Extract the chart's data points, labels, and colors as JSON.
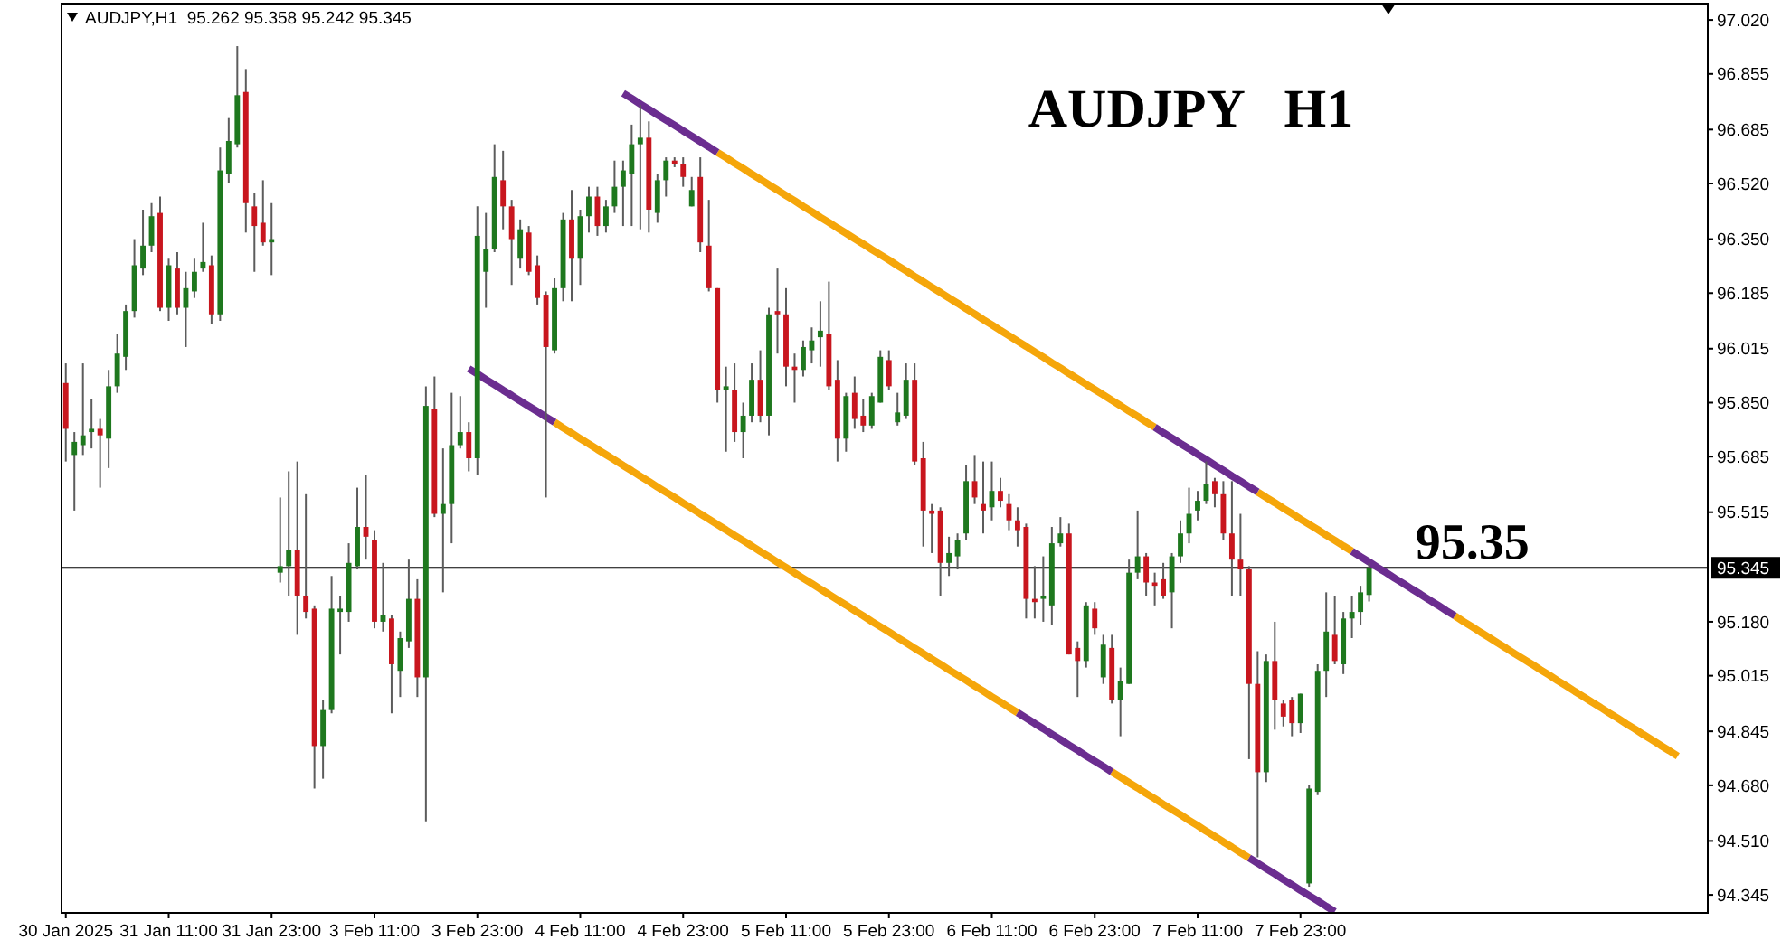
{
  "chart_data": {
    "type": "candlestick",
    "title": "AUDJPY   H1",
    "annotations": [
      "AUDJPY,H1  95.262 95.358 95.242 95.345",
      {
        "text": "95.35",
        "y": 95.35
      }
    ],
    "categories": [
      "30 Jan 2025",
      null,
      null,
      null,
      null,
      null,
      null,
      null,
      null,
      null,
      null,
      null,
      "31 Jan 11:00",
      null,
      null,
      null,
      null,
      null,
      null,
      null,
      null,
      null,
      null,
      null,
      "31 Jan 23:00",
      null,
      null,
      null,
      null,
      null,
      null,
      null,
      null,
      null,
      null,
      null,
      "3 Feb 11:00",
      null,
      null,
      null,
      null,
      null,
      null,
      null,
      null,
      null,
      null,
      null,
      "3 Feb 23:00",
      null,
      null,
      null,
      null,
      null,
      null,
      null,
      null,
      null,
      null,
      null,
      "4 Feb 11:00",
      null,
      null,
      null,
      null,
      null,
      null,
      null,
      null,
      null,
      null,
      null,
      "4 Feb 23:00",
      null,
      null,
      null,
      null,
      null,
      null,
      null,
      null,
      null,
      null,
      null,
      "5 Feb 11:00",
      null,
      null,
      null,
      null,
      null,
      null,
      null,
      null,
      null,
      null,
      null,
      "5 Feb 23:00",
      null,
      null,
      null,
      null,
      null,
      null,
      null,
      null,
      null,
      null,
      null,
      "6 Feb 11:00",
      null,
      null,
      null,
      null,
      null,
      null,
      null,
      null,
      null,
      null,
      null,
      "6 Feb 23:00",
      null,
      null,
      null,
      null,
      null,
      null,
      null,
      null,
      null,
      null,
      null,
      "7 Feb 11:00",
      null,
      null,
      null,
      null,
      null,
      null,
      null,
      null,
      null,
      null,
      null,
      "7 Feb 23:00",
      null,
      null,
      null,
      null,
      null,
      null,
      null,
      null,
      null,
      null,
      null,
      null,
      null,
      null,
      null,
      null,
      null,
      null,
      null,
      null,
      null,
      null,
      null,
      null,
      null,
      null,
      null,
      null,
      null,
      null,
      null,
      null,
      null,
      null,
      null,
      null,
      null,
      null,
      null,
      null,
      null,
      null,
      null,
      null,
      null,
      null,
      null
    ],
    "ohlc": [
      [
        95.91,
        95.97,
        95.67,
        95.77
      ],
      [
        95.69,
        95.76,
        95.52,
        95.73
      ],
      [
        95.72,
        95.97,
        95.69,
        95.75
      ],
      [
        95.76,
        95.86,
        95.71,
        95.77
      ],
      [
        95.77,
        95.8,
        95.59,
        95.75
      ],
      [
        95.74,
        95.95,
        95.65,
        95.9
      ],
      [
        95.9,
        96.06,
        95.88,
        96.0
      ],
      [
        95.99,
        96.15,
        95.95,
        96.13
      ],
      [
        96.13,
        96.35,
        96.11,
        96.27
      ],
      [
        96.26,
        96.44,
        96.24,
        96.33
      ],
      [
        96.33,
        96.46,
        96.31,
        96.42
      ],
      [
        96.43,
        96.48,
        96.13,
        96.14
      ],
      [
        96.14,
        96.29,
        96.1,
        96.27
      ],
      [
        96.26,
        96.31,
        96.12,
        96.14
      ],
      [
        96.14,
        96.25,
        96.02,
        96.2
      ],
      [
        96.19,
        96.29,
        96.17,
        96.25
      ],
      [
        96.26,
        96.4,
        96.25,
        96.28
      ],
      [
        96.27,
        96.3,
        96.09,
        96.12
      ],
      [
        96.12,
        96.63,
        96.1,
        96.56
      ],
      [
        96.55,
        96.72,
        96.52,
        96.65
      ],
      [
        96.64,
        96.94,
        96.63,
        96.79
      ],
      [
        96.8,
        96.87,
        96.37,
        96.46
      ],
      [
        96.45,
        96.49,
        96.25,
        96.39
      ],
      [
        96.4,
        96.53,
        96.33,
        96.34
      ],
      [
        96.34,
        96.46,
        96.24,
        96.35
      ],
      [
        95.33,
        95.56,
        95.3,
        95.35
      ],
      [
        95.35,
        95.64,
        95.26,
        95.4
      ],
      [
        95.4,
        95.67,
        95.14,
        95.26
      ],
      [
        95.26,
        95.57,
        95.19,
        95.21
      ],
      [
        95.22,
        95.23,
        94.67,
        94.8
      ],
      [
        94.8,
        94.94,
        94.7,
        94.91
      ],
      [
        94.91,
        95.32,
        94.9,
        95.22
      ],
      [
        95.21,
        95.26,
        95.08,
        95.22
      ],
      [
        95.21,
        95.42,
        95.18,
        95.36
      ],
      [
        95.35,
        95.59,
        95.34,
        95.47
      ],
      [
        95.47,
        95.63,
        95.37,
        95.44
      ],
      [
        95.43,
        95.46,
        95.16,
        95.18
      ],
      [
        95.18,
        95.36,
        95.15,
        95.2
      ],
      [
        95.19,
        95.2,
        94.9,
        95.05
      ],
      [
        95.03,
        95.15,
        94.95,
        95.13
      ],
      [
        95.12,
        95.37,
        95.1,
        95.25
      ],
      [
        95.25,
        95.31,
        94.95,
        95.01
      ],
      [
        95.01,
        95.9,
        94.57,
        95.84
      ],
      [
        95.83,
        95.93,
        95.5,
        95.51
      ],
      [
        95.51,
        95.71,
        95.27,
        95.54
      ],
      [
        95.54,
        95.88,
        95.42,
        95.72
      ],
      [
        95.72,
        95.87,
        95.71,
        95.76
      ],
      [
        95.76,
        95.79,
        95.64,
        95.68
      ],
      [
        95.68,
        96.45,
        95.63,
        96.36
      ],
      [
        96.25,
        96.43,
        96.14,
        96.32
      ],
      [
        96.32,
        96.64,
        96.31,
        96.54
      ],
      [
        96.53,
        96.62,
        96.38,
        96.45
      ],
      [
        96.45,
        96.47,
        96.21,
        96.35
      ],
      [
        96.29,
        96.41,
        96.26,
        96.38
      ],
      [
        96.37,
        96.39,
        96.24,
        96.25
      ],
      [
        96.27,
        96.3,
        96.15,
        96.17
      ],
      [
        96.18,
        96.19,
        95.56,
        96.02
      ],
      [
        96.01,
        96.23,
        96.0,
        96.2
      ],
      [
        96.2,
        96.43,
        96.16,
        96.41
      ],
      [
        96.41,
        96.5,
        96.16,
        96.29
      ],
      [
        96.29,
        96.44,
        96.21,
        96.42
      ],
      [
        96.42,
        96.51,
        96.37,
        96.48
      ],
      [
        96.48,
        96.51,
        96.36,
        96.39
      ],
      [
        96.39,
        96.47,
        96.37,
        96.45
      ],
      [
        96.45,
        96.59,
        96.43,
        96.51
      ],
      [
        96.51,
        96.59,
        96.39,
        96.56
      ],
      [
        96.55,
        96.7,
        96.39,
        96.64
      ],
      [
        96.64,
        96.76,
        96.38,
        96.66
      ],
      [
        96.66,
        96.71,
        96.37,
        96.44
      ],
      [
        96.43,
        96.55,
        96.4,
        96.53
      ],
      [
        96.53,
        96.6,
        96.48,
        96.59
      ],
      [
        96.59,
        96.6,
        96.57,
        96.58
      ],
      [
        96.58,
        96.6,
        96.51,
        96.54
      ],
      [
        96.45,
        96.54,
        96.45,
        96.5
      ],
      [
        96.54,
        96.6,
        96.31,
        96.34
      ],
      [
        96.33,
        96.47,
        96.19,
        96.2
      ],
      [
        96.2,
        96.2,
        95.85,
        95.89
      ],
      [
        95.89,
        95.96,
        95.7,
        95.9
      ],
      [
        95.89,
        95.97,
        95.73,
        95.76
      ],
      [
        95.76,
        95.85,
        95.68,
        95.81
      ],
      [
        95.81,
        95.97,
        95.79,
        95.92
      ],
      [
        95.92,
        96.01,
        95.79,
        95.81
      ],
      [
        95.81,
        96.14,
        95.75,
        96.12
      ],
      [
        96.13,
        96.26,
        96.0,
        96.12
      ],
      [
        96.12,
        96.2,
        95.9,
        95.96
      ],
      [
        95.96,
        96.0,
        95.85,
        95.95
      ],
      [
        95.95,
        96.04,
        95.93,
        96.02
      ],
      [
        96.01,
        96.08,
        95.97,
        96.04
      ],
      [
        96.05,
        96.16,
        95.96,
        96.07
      ],
      [
        96.06,
        96.22,
        95.89,
        95.9
      ],
      [
        95.92,
        95.98,
        95.67,
        95.74
      ],
      [
        95.74,
        95.88,
        95.7,
        95.87
      ],
      [
        95.88,
        95.93,
        95.77,
        95.8
      ],
      [
        95.81,
        95.86,
        95.76,
        95.78
      ],
      [
        95.78,
        95.88,
        95.77,
        95.87
      ],
      [
        95.85,
        96.01,
        95.85,
        95.99
      ],
      [
        95.98,
        96.01,
        95.89,
        95.9
      ],
      [
        95.79,
        95.88,
        95.78,
        95.82
      ],
      [
        95.81,
        95.97,
        95.8,
        95.92
      ],
      [
        95.92,
        95.97,
        95.66,
        95.67
      ],
      [
        95.68,
        95.73,
        95.41,
        95.52
      ],
      [
        95.52,
        95.54,
        95.39,
        95.51
      ],
      [
        95.52,
        95.53,
        95.26,
        95.36
      ],
      [
        95.36,
        95.44,
        95.32,
        95.39
      ],
      [
        95.38,
        95.45,
        95.34,
        95.43
      ],
      [
        95.45,
        95.66,
        95.43,
        95.61
      ],
      [
        95.61,
        95.69,
        95.54,
        95.56
      ],
      [
        95.54,
        95.67,
        95.45,
        95.52
      ],
      [
        95.53,
        95.67,
        95.49,
        95.58
      ],
      [
        95.58,
        95.62,
        95.53,
        95.55
      ],
      [
        95.54,
        95.57,
        95.46,
        95.49
      ],
      [
        95.49,
        95.53,
        95.41,
        95.46
      ],
      [
        95.47,
        95.48,
        95.19,
        95.25
      ],
      [
        95.25,
        95.35,
        95.19,
        95.24
      ],
      [
        95.25,
        95.38,
        95.18,
        95.26
      ],
      [
        95.23,
        95.47,
        95.17,
        95.42
      ],
      [
        95.42,
        95.5,
        95.41,
        95.45
      ],
      [
        95.45,
        95.48,
        95.08,
        95.08
      ],
      [
        95.1,
        95.12,
        94.95,
        95.06
      ],
      [
        95.06,
        95.24,
        95.04,
        95.23
      ],
      [
        95.22,
        95.24,
        95.14,
        95.16
      ],
      [
        95.01,
        95.14,
        94.99,
        95.11
      ],
      [
        95.1,
        95.14,
        94.93,
        94.94
      ],
      [
        94.94,
        95.04,
        94.83,
        95.0
      ],
      [
        94.99,
        95.37,
        94.99,
        95.33
      ],
      [
        95.33,
        95.52,
        95.31,
        95.38
      ],
      [
        95.38,
        95.39,
        95.26,
        95.3
      ],
      [
        95.3,
        95.33,
        95.23,
        95.29
      ],
      [
        95.31,
        95.36,
        95.25,
        95.26
      ],
      [
        95.27,
        95.39,
        95.16,
        95.38
      ],
      [
        95.38,
        95.49,
        95.36,
        95.45
      ],
      [
        95.45,
        95.59,
        95.42,
        95.51
      ],
      [
        95.52,
        95.58,
        95.49,
        95.55
      ],
      [
        95.55,
        95.67,
        95.54,
        95.6
      ],
      [
        95.61,
        95.62,
        95.53,
        95.57
      ],
      [
        95.57,
        95.61,
        95.43,
        95.45
      ],
      [
        95.45,
        95.61,
        95.26,
        95.37
      ],
      [
        95.37,
        95.51,
        95.26,
        95.34
      ],
      [
        95.34,
        95.35,
        94.76,
        94.99
      ],
      [
        94.99,
        95.09,
        94.46,
        94.72
      ],
      [
        94.72,
        95.08,
        94.69,
        95.06
      ],
      [
        95.06,
        95.18,
        94.85,
        94.94
      ],
      [
        94.93,
        94.94,
        94.86,
        94.89
      ],
      [
        94.94,
        94.95,
        94.83,
        94.87
      ],
      [
        94.87,
        94.96,
        94.84,
        94.96
      ],
      [
        94.38,
        94.68,
        94.37,
        94.67
      ],
      [
        94.66,
        95.05,
        94.65,
        95.03
      ],
      [
        95.03,
        95.27,
        94.95,
        95.15
      ],
      [
        95.14,
        95.26,
        95.05,
        95.06
      ],
      [
        95.05,
        95.21,
        95.02,
        95.19
      ],
      [
        95.19,
        95.26,
        95.13,
        95.21
      ],
      [
        95.21,
        95.29,
        95.17,
        95.27
      ],
      [
        95.262,
        95.358,
        95.242,
        95.345
      ],
      null,
      null,
      null,
      null,
      null,
      null,
      null,
      null,
      null,
      null,
      null,
      null,
      null,
      null,
      null,
      null,
      null,
      null,
      null,
      null,
      null,
      null,
      null,
      null,
      null,
      null,
      null,
      null,
      null,
      null,
      null,
      null,
      null,
      null,
      null,
      null,
      null,
      null,
      null
    ],
    "colors": [
      "#c8161e",
      "#1e781e",
      "#1e781e",
      "#1e781e",
      "#c8161e",
      "#1e781e",
      "#1e781e",
      "#1e781e",
      "#1e781e",
      "#1e781e",
      "#1e781e",
      "#c8161e",
      "#1e781e",
      "#c8161e",
      "#1e781e",
      "#1e781e",
      "#1e781e",
      "#c8161e",
      "#1e781e",
      "#1e781e",
      "#1e781e",
      "#c8161e",
      "#c8161e",
      "#c8161e",
      "#1e781e",
      "#1e781e",
      "#1e781e",
      "#c8161e",
      "#c8161e",
      "#c8161e",
      "#1e781e",
      "#1e781e",
      "#1e781e",
      "#1e781e",
      "#1e781e",
      "#c8161e",
      "#c8161e",
      "#1e781e",
      "#c8161e",
      "#1e781e",
      "#1e781e",
      "#c8161e",
      "#1e781e",
      "#c8161e",
      "#1e781e",
      "#1e781e",
      "#1e781e",
      "#c8161e",
      "#1e781e",
      "#1e781e",
      "#1e781e",
      "#c8161e",
      "#c8161e",
      "#1e781e",
      "#c8161e",
      "#c8161e",
      "#c8161e",
      "#1e781e",
      "#1e781e",
      "#c8161e",
      "#1e781e",
      "#1e781e",
      "#c8161e",
      "#1e781e",
      "#1e781e",
      "#1e781e",
      "#1e781e",
      "#1e781e",
      "#c8161e",
      "#1e781e",
      "#1e781e",
      "#c8161e",
      "#c8161e",
      "#1e781e",
      "#c8161e",
      "#c8161e",
      "#c8161e",
      "#1e781e",
      "#c8161e",
      "#1e781e",
      "#1e781e",
      "#c8161e",
      "#1e781e",
      "#c8161e",
      "#c8161e",
      "#c8161e",
      "#1e781e",
      "#1e781e",
      "#1e781e",
      "#c8161e",
      "#c8161e",
      "#1e781e",
      "#c8161e",
      "#c8161e",
      "#1e781e",
      "#1e781e",
      "#c8161e",
      "#1e781e",
      "#1e781e",
      "#c8161e",
      "#c8161e",
      "#c8161e",
      "#c8161e",
      "#1e781e",
      "#1e781e",
      "#1e781e",
      "#c8161e",
      "#c8161e",
      "#1e781e",
      "#c8161e",
      "#c8161e",
      "#c8161e",
      "#c8161e",
      "#c8161e",
      "#1e781e",
      "#1e781e",
      "#1e781e",
      "#c8161e",
      "#c8161e",
      "#1e781e",
      "#c8161e",
      "#1e781e",
      "#c8161e",
      "#1e781e",
      "#1e781e",
      "#1e781e",
      "#c8161e",
      "#c8161e",
      "#c8161e",
      "#1e781e",
      "#1e781e",
      "#1e781e",
      "#1e781e",
      "#1e781e",
      "#c8161e",
      "#c8161e",
      "#c8161e",
      "#c8161e",
      "#c8161e",
      "#c8161e",
      "#1e781e",
      "#c8161e",
      "#c8161e",
      "#c8161e",
      "#1e781e",
      "#1e781e",
      "#1e781e",
      "#1e781e",
      "#c8161e",
      "#1e781e",
      "#1e781e",
      "#1e781e",
      "#1e781e",
      null,
      null,
      null,
      null,
      null,
      null,
      null,
      null,
      null,
      null,
      null,
      null,
      null,
      null,
      null,
      null,
      null,
      null,
      null,
      null,
      null,
      null,
      null,
      null,
      null,
      null,
      null,
      null,
      null,
      null,
      null,
      null,
      null,
      null,
      null,
      null,
      null,
      null,
      null
    ],
    "series": [
      {
        "type": "line",
        "color": "#f5a60a",
        "values": [
          null,
          null,
          null,
          null,
          null,
          null,
          null,
          null,
          null,
          null,
          null,
          null,
          null,
          null,
          null,
          null,
          null,
          null,
          null,
          null,
          null,
          null,
          null,
          null,
          null,
          null,
          null,
          null,
          null,
          null,
          null,
          null,
          null,
          null,
          null,
          null,
          null,
          null,
          null,
          null,
          null,
          null,
          null,
          null,
          null,
          null,
          null,
          null,
          null,
          null,
          null,
          null,
          null,
          null,
          null,
          null,
          null,
          null,
          null,
          null,
          null,
          null,
          null,
          null,
          null,
          null,
          null,
          null,
          null,
          null,
          null,
          null,
          null,
          null,
          null,
          null,
          96.615,
          96.599,
          96.582,
          96.566,
          96.549,
          96.533,
          96.516,
          96.5,
          96.483,
          96.467,
          96.45,
          96.434,
          96.417,
          96.401,
          96.384,
          96.368,
          96.351,
          96.335,
          96.318,
          96.302,
          96.286,
          96.269,
          96.253,
          96.236,
          96.22,
          96.203,
          96.187,
          96.17,
          96.154,
          96.137,
          96.121,
          96.104,
          96.088,
          96.071,
          96.055,
          96.038,
          96.022,
          96.005,
          95.989,
          95.972,
          95.956,
          95.939,
          95.923,
          95.906,
          95.89,
          95.874,
          95.857,
          95.841,
          95.824,
          95.808,
          95.791,
          95.775,
          null,
          null,
          null,
          null,
          null,
          null,
          null,
          null,
          null,
          null,
          null,
          95.577,
          95.56,
          95.544,
          95.527,
          95.511,
          95.494,
          95.478,
          95.462,
          95.445,
          95.429,
          95.412,
          95.396,
          null,
          null,
          null,
          null,
          null,
          null,
          null,
          null,
          null,
          null,
          null,
          95.198,
          95.181,
          95.165,
          95.148,
          95.132,
          95.115,
          95.099,
          95.082,
          95.066,
          95.05,
          95.033,
          95.017,
          95.0,
          94.984,
          94.967,
          94.951,
          94.934,
          94.918,
          94.901,
          94.885,
          94.868,
          94.852,
          94.835,
          94.819,
          94.802,
          94.786,
          94.769,
          null,
          null,
          null
        ]
      },
      {
        "type": "line",
        "color": "#f5a60a",
        "values": [
          null,
          null,
          null,
          null,
          null,
          null,
          null,
          null,
          null,
          null,
          null,
          null,
          null,
          null,
          null,
          null,
          null,
          null,
          null,
          null,
          null,
          null,
          null,
          null,
          null,
          null,
          null,
          null,
          null,
          null,
          null,
          null,
          null,
          null,
          null,
          null,
          null,
          null,
          null,
          null,
          null,
          null,
          null,
          null,
          null,
          null,
          null,
          null,
          null,
          null,
          null,
          null,
          null,
          null,
          null,
          null,
          null,
          95.79,
          95.773,
          95.757,
          95.74,
          95.724,
          95.707,
          95.691,
          95.675,
          95.658,
          95.642,
          95.625,
          95.609,
          95.592,
          95.576,
          95.56,
          95.543,
          95.527,
          95.51,
          95.494,
          95.477,
          95.461,
          95.444,
          95.428,
          95.412,
          95.395,
          95.379,
          95.362,
          95.346,
          95.329,
          95.313,
          95.297,
          95.28,
          95.264,
          95.247,
          95.231,
          95.214,
          95.198,
          95.181,
          95.165,
          95.149,
          95.132,
          95.116,
          95.099,
          95.083,
          95.066,
          95.05,
          95.033,
          95.017,
          95.001,
          94.984,
          94.968,
          94.951,
          94.935,
          94.918,
          94.902,
          null,
          null,
          null,
          null,
          null,
          null,
          null,
          null,
          null,
          null,
          94.721,
          94.705,
          94.688,
          94.672,
          94.655,
          94.639,
          94.622,
          94.606,
          94.59,
          94.573,
          94.557,
          94.54,
          94.524,
          94.507,
          94.491,
          94.474,
          94.458,
          null,
          null,
          null,
          null,
          null,
          null,
          null,
          null,
          null,
          null,
          null,
          null,
          null,
          null,
          null,
          null,
          null,
          null,
          null,
          null,
          null,
          null,
          null,
          null,
          null,
          null,
          null,
          null,
          null,
          null,
          null,
          null,
          null,
          null,
          null,
          null,
          null,
          null,
          null,
          null,
          null,
          null,
          null,
          null,
          null,
          null,
          null,
          null,
          null,
          null,
          null,
          null,
          null
        ]
      },
      {
        "type": "line",
        "color": "#6b2d90",
        "values": [
          null,
          null,
          null,
          null,
          null,
          null,
          null,
          null,
          null,
          null,
          null,
          null,
          null,
          null,
          null,
          null,
          null,
          null,
          null,
          null,
          null,
          null,
          null,
          null,
          null,
          null,
          null,
          null,
          null,
          null,
          null,
          null,
          null,
          null,
          null,
          null,
          null,
          null,
          null,
          null,
          null,
          null,
          null,
          null,
          null,
          null,
          null,
          null,
          null,
          null,
          null,
          null,
          null,
          null,
          null,
          null,
          null,
          null,
          null,
          null,
          null,
          null,
          null,
          null,
          null,
          96.796,
          96.78,
          96.763,
          96.747,
          96.73,
          96.714,
          96.698,
          96.681,
          96.665,
          96.648,
          96.632,
          96.615,
          null,
          null,
          null,
          null,
          null,
          null,
          null,
          null,
          null,
          null,
          null,
          null,
          null,
          null,
          null,
          null,
          null,
          null,
          null,
          null,
          null,
          null,
          null,
          null,
          null,
          null,
          null,
          null,
          null,
          null,
          null,
          null,
          null,
          null,
          null,
          null,
          null,
          null,
          null,
          null,
          null,
          null,
          null,
          null,
          null,
          null,
          null,
          null,
          null,
          null,
          95.775,
          95.758,
          95.742,
          95.725,
          95.709,
          95.692,
          95.676,
          95.659,
          95.643,
          95.626,
          95.61,
          95.593,
          95.577,
          null,
          null,
          null,
          null,
          null,
          null,
          null,
          null,
          null,
          null,
          95.396,
          95.379,
          95.363,
          95.346,
          95.33,
          95.313,
          95.297,
          95.28,
          95.264,
          95.247,
          95.231,
          95.214,
          95.198,
          null,
          null,
          null,
          null,
          null,
          null,
          null,
          null,
          null,
          null,
          null,
          null,
          null,
          null,
          null,
          null,
          null,
          null,
          null,
          null,
          null,
          null,
          null,
          null,
          null,
          null,
          null,
          null,
          null
        ]
      },
      {
        "type": "line",
        "color": "#6b2d90",
        "values": [
          null,
          null,
          null,
          null,
          null,
          null,
          null,
          null,
          null,
          null,
          null,
          null,
          null,
          null,
          null,
          null,
          null,
          null,
          null,
          null,
          null,
          null,
          null,
          null,
          null,
          null,
          null,
          null,
          null,
          null,
          null,
          null,
          null,
          null,
          null,
          null,
          null,
          null,
          null,
          null,
          null,
          null,
          null,
          null,
          null,
          null,
          null,
          95.954,
          95.938,
          95.921,
          95.905,
          95.888,
          95.872,
          95.855,
          95.839,
          95.823,
          95.806,
          95.79,
          null,
          null,
          null,
          null,
          null,
          null,
          null,
          null,
          null,
          null,
          null,
          null,
          null,
          null,
          null,
          null,
          null,
          null,
          null,
          null,
          null,
          null,
          null,
          null,
          null,
          null,
          null,
          null,
          null,
          null,
          null,
          null,
          null,
          null,
          null,
          null,
          null,
          null,
          null,
          null,
          null,
          null,
          null,
          null,
          null,
          null,
          null,
          null,
          null,
          null,
          null,
          null,
          null,
          94.902,
          94.886,
          94.869,
          94.853,
          94.836,
          94.82,
          94.803,
          94.787,
          94.77,
          94.754,
          94.738,
          94.721,
          null,
          null,
          null,
          null,
          null,
          null,
          null,
          null,
          null,
          null,
          null,
          null,
          null,
          null,
          null,
          94.458,
          94.442,
          94.425,
          94.409,
          94.392,
          94.376,
          94.359,
          94.343,
          94.327,
          94.31,
          94.294,
          null,
          null,
          null,
          null,
          null,
          null,
          null,
          null,
          null,
          null,
          null,
          null,
          null,
          null,
          null,
          null,
          null,
          null,
          null,
          null,
          null,
          null,
          null,
          null,
          null,
          null,
          null,
          null,
          null,
          null,
          null,
          null,
          null,
          null,
          null,
          null,
          null,
          null,
          null,
          null,
          null,
          null,
          null
        ]
      }
    ],
    "ylim": [
      94.29,
      97.07
    ],
    "yticks": [
      {
        "value": 97.02,
        "label": "97.020"
      },
      96.855,
      96.685,
      {
        "value": 96.52,
        "label": "96.520"
      },
      {
        "value": 96.35,
        "label": "96.350"
      },
      96.185,
      96.015,
      {
        "value": 95.85,
        "label": "95.850"
      },
      95.685,
      95.515,
      {
        "value": 95.18,
        "label": "95.180"
      },
      95.015,
      94.845,
      {
        "value": 94.68,
        "label": "94.680"
      },
      {
        "value": 94.51,
        "label": "94.510"
      },
      94.345
    ],
    "ref_lines": [
      {
        "axis": "y",
        "value": 95.345,
        "label": "95.345",
        "color": "#000000"
      }
    ]
  }
}
